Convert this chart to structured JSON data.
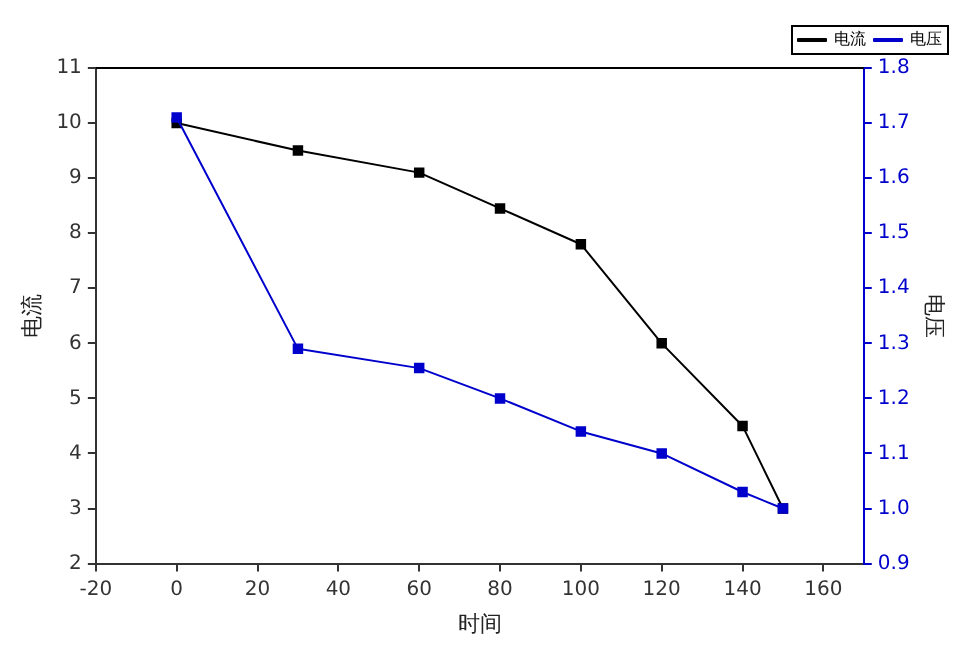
{
  "chart_data": {
    "type": "line",
    "xlabel": "时间",
    "ylabel": "电流",
    "y2label": "电压",
    "x": [
      0,
      30,
      60,
      80,
      100,
      120,
      140,
      150
    ],
    "series": [
      {
        "name": "电流",
        "color": "#000000",
        "values": [
          10,
          9.5,
          9.1,
          8.45,
          7.8,
          6.0,
          4.5,
          3.0
        ]
      },
      {
        "name": "电压",
        "color": "#0000cc",
        "axis": "y2",
        "values": [
          1.71,
          1.29,
          1.255,
          1.2,
          1.14,
          1.1,
          1.03,
          1.0
        ]
      }
    ],
    "xlim": [
      -20,
      170
    ],
    "xticks": [
      -20,
      0,
      20,
      40,
      60,
      80,
      100,
      120,
      140,
      160
    ],
    "ylim": [
      2,
      11
    ],
    "yticks": [
      2,
      3,
      4,
      5,
      6,
      7,
      8,
      9,
      10,
      11
    ],
    "y2lim": [
      0.9,
      1.8
    ],
    "y2ticks": [
      0.9,
      {
        "value": 1,
        "label": "1.0"
      },
      1.1,
      1.2,
      1.3,
      1.4,
      1.5,
      1.6,
      1.7,
      1.8
    ],
    "grid": false,
    "legend": "top right",
    "marker": "square",
    "line_style": "solid"
  }
}
